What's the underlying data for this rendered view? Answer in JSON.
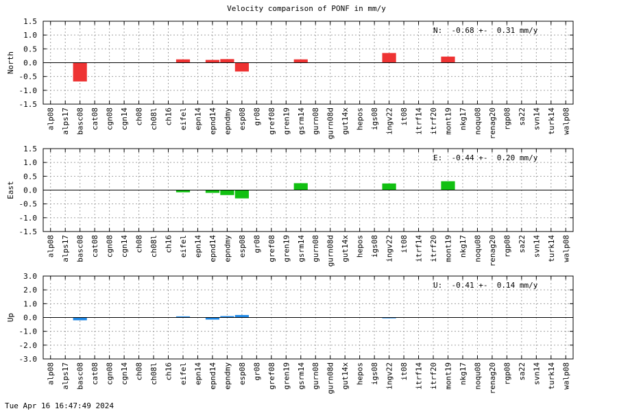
{
  "title": "Velocity comparison of PONF in mm/y",
  "timestamp": "Tue Apr 16 16:47:49 2024",
  "chart_data": {
    "type": "bar",
    "categories": [
      "alp08",
      "alps17",
      "basc08",
      "cat08",
      "cgn08",
      "cgn14",
      "ch08",
      "ch08l",
      "ch16",
      "eifel",
      "epn14",
      "epnd14",
      "epndmy",
      "esp08",
      "gr08",
      "gref08",
      "gren19",
      "gsrm14",
      "gurn08",
      "gurn08d",
      "gut14x",
      "hepos",
      "igs08",
      "ingv22",
      "it08",
      "itrf14",
      "itrf20",
      "mont19",
      "nkg17",
      "noqu08",
      "renag20",
      "rgp08",
      "sa22",
      "svn14",
      "turk14",
      "walp08"
    ],
    "panels": [
      {
        "ylabel": "North",
        "ylim": [
          -1.5,
          1.5
        ],
        "ticks": [
          "-1.5",
          "-1.0",
          "-0.5",
          "0.0",
          "0.5",
          "1.0",
          "1.5"
        ],
        "annotation": "N:  -0.68 +-  0.31 mm/y",
        "color": "#ee3333",
        "values": [
          0,
          0,
          -0.68,
          0,
          0,
          0,
          0,
          0,
          0,
          0.12,
          0,
          0.1,
          0.13,
          -0.32,
          0,
          0,
          0,
          0.12,
          0,
          0,
          0,
          0,
          0,
          0.35,
          0,
          0,
          0,
          0.22,
          0,
          0,
          0,
          0,
          0,
          0,
          0,
          0
        ]
      },
      {
        "ylabel": "East",
        "ylim": [
          -1.5,
          1.5
        ],
        "ticks": [
          "-1.5",
          "-1.0",
          "-0.5",
          "0.0",
          "0.5",
          "1.0",
          "1.5"
        ],
        "annotation": "E:  -0.44 +-  0.20 mm/y",
        "color": "#11c011",
        "values": [
          0,
          0,
          0,
          0,
          0,
          0,
          0,
          0,
          0,
          -0.08,
          0,
          -0.1,
          -0.18,
          -0.3,
          0,
          0,
          0,
          0.25,
          0,
          0,
          0,
          0,
          0,
          0.24,
          0,
          0,
          0,
          0.32,
          0,
          0,
          0,
          0,
          0,
          0,
          0,
          0
        ]
      },
      {
        "ylabel": "Up",
        "ylim": [
          -3.0,
          3.0
        ],
        "ticks": [
          "-3.0",
          "-2.0",
          "-1.0",
          "0.0",
          "1.0",
          "2.0",
          "3.0"
        ],
        "annotation": "U:  -0.41 +-  0.14 mm/y",
        "color": "#1c86e4",
        "values": [
          0,
          0,
          -0.2,
          0,
          0,
          0,
          0,
          0,
          0,
          0.08,
          0,
          -0.15,
          0.1,
          0.18,
          0,
          0,
          0,
          0,
          0,
          0,
          0,
          0,
          0,
          -0.06,
          0,
          0,
          0,
          0,
          0,
          0,
          0,
          0,
          0,
          0,
          0,
          0
        ]
      }
    ],
    "grid": true
  }
}
